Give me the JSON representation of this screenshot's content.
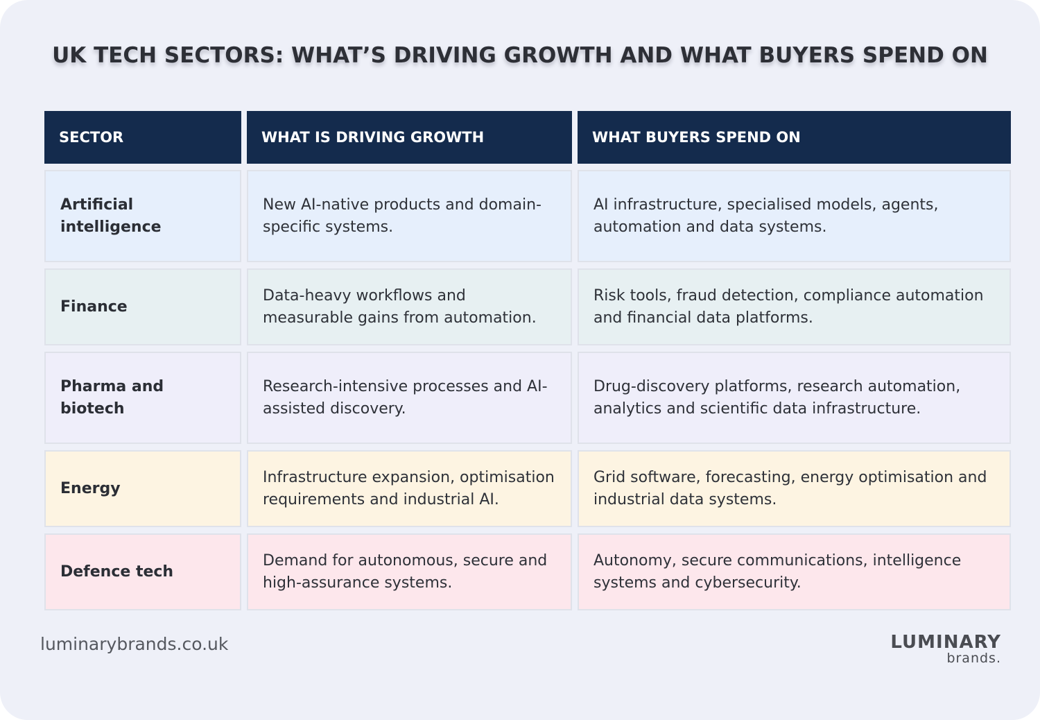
{
  "title": "UK TECH SECTORS: WHAT’S DRIVING GROWTH AND WHAT BUYERS SPEND ON",
  "table": {
    "headers": [
      "SECTOR",
      "WHAT IS DRIVING GROWTH",
      "WHAT BUYERS SPEND ON"
    ],
    "rows": [
      {
        "sector": "Artificial intelligence",
        "growth": "New AI-native products and domain-specific systems.",
        "spend": "AI infrastructure, specialised models, agents, automation and data systems.",
        "color": "#e6effc"
      },
      {
        "sector": "Finance",
        "growth": "Data-heavy workflows and measurable gains from automation.",
        "spend": "Risk tools, fraud detection, compliance automation and financial data platforms.",
        "color": "#e7f0f2"
      },
      {
        "sector": "Pharma and biotech",
        "growth": "Research-intensive processes and AI-assisted discovery.",
        "spend": "Drug-discovery platforms, research automation, analytics and scientific data infrastructure.",
        "color": "#efeefa"
      },
      {
        "sector": "Energy",
        "growth": "Infrastructure expansion, optimisation requirements and industrial AI.",
        "spend": "Grid software, forecasting, energy optimisation and industrial data systems.",
        "color": "#fdf4e2"
      },
      {
        "sector": "Defence tech",
        "growth": "Demand for autonomous, secure and high-assurance systems.",
        "spend": "Autonomy, secure communications, intelligence systems and cybersecurity.",
        "color": "#fde7ec"
      }
    ]
  },
  "footer": {
    "url": "luminarybrands.co.uk",
    "logo_main": "LUMINARY",
    "logo_sub": "brands."
  },
  "colors": {
    "header_bg": "#142b4d",
    "card_bg": "#eef0f8"
  }
}
